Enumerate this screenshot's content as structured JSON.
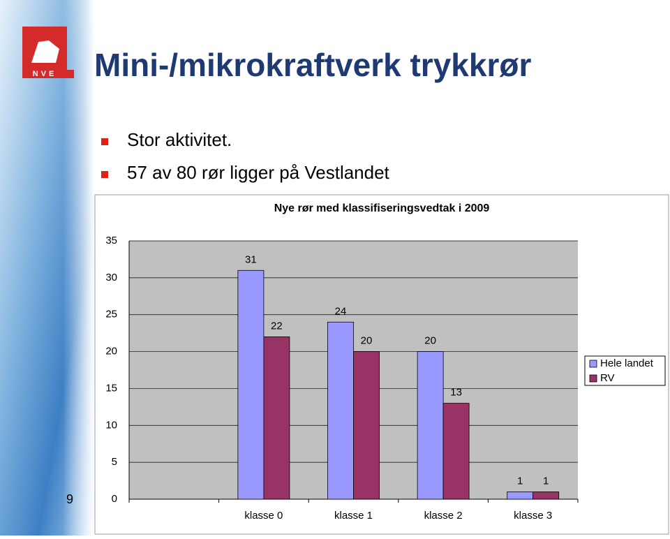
{
  "slide": {
    "logo_text": "NVE",
    "title": "Mini-/mikrokraftverk trykkrør",
    "bullets": [
      "Stor aktivitet.",
      "57 av 80 rør ligger på Vestlandet"
    ],
    "page_number": "9"
  },
  "chart_data": {
    "type": "bar",
    "title": "Nye rør med klassifiseringsvedtak i 2009",
    "categories": [
      null,
      "klasse 0",
      "klasse 1",
      "klasse 2",
      "klasse 3"
    ],
    "series": [
      {
        "name": "Hele landet",
        "color": "#9999ff",
        "values": [
          null,
          31,
          24,
          20,
          1
        ]
      },
      {
        "name": "RV",
        "color": "#993366",
        "values": [
          null,
          22,
          20,
          13,
          1
        ]
      }
    ],
    "ylim": [
      0,
      35
    ],
    "yticks": [
      0,
      5,
      10,
      15,
      20,
      25,
      30,
      35
    ],
    "grid": true,
    "legend": "right"
  }
}
